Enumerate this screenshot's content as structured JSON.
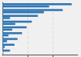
{
  "chart_data": {
    "type": "bar",
    "orientation": "horizontal",
    "categories": [
      null,
      null,
      null,
      null,
      null,
      null,
      null,
      null,
      null
    ],
    "series": [
      {
        "color": "#2e75b6",
        "values": [
          0.92,
          0.8,
          0.47,
          0.39,
          0.32,
          0.26,
          0.2,
          0.16,
          0.1
        ]
      },
      {
        "colors": [
          "#2e75b6",
          "#2e75b6",
          "#2e75b6",
          "#2e75b6",
          "#2e75b6",
          "#2e75b6",
          "#2e75b6",
          "#2e75b6",
          "#a8c4e0"
        ],
        "values": [
          0.62,
          0.55,
          0.1,
          0.17,
          0.13,
          0.08,
          0.06,
          0.03,
          0.02
        ]
      }
    ],
    "xlim": [
      0,
      1.0
    ],
    "xticks": [
      0.333,
      0.666
    ],
    "grid": true,
    "tick_labels": false
  }
}
